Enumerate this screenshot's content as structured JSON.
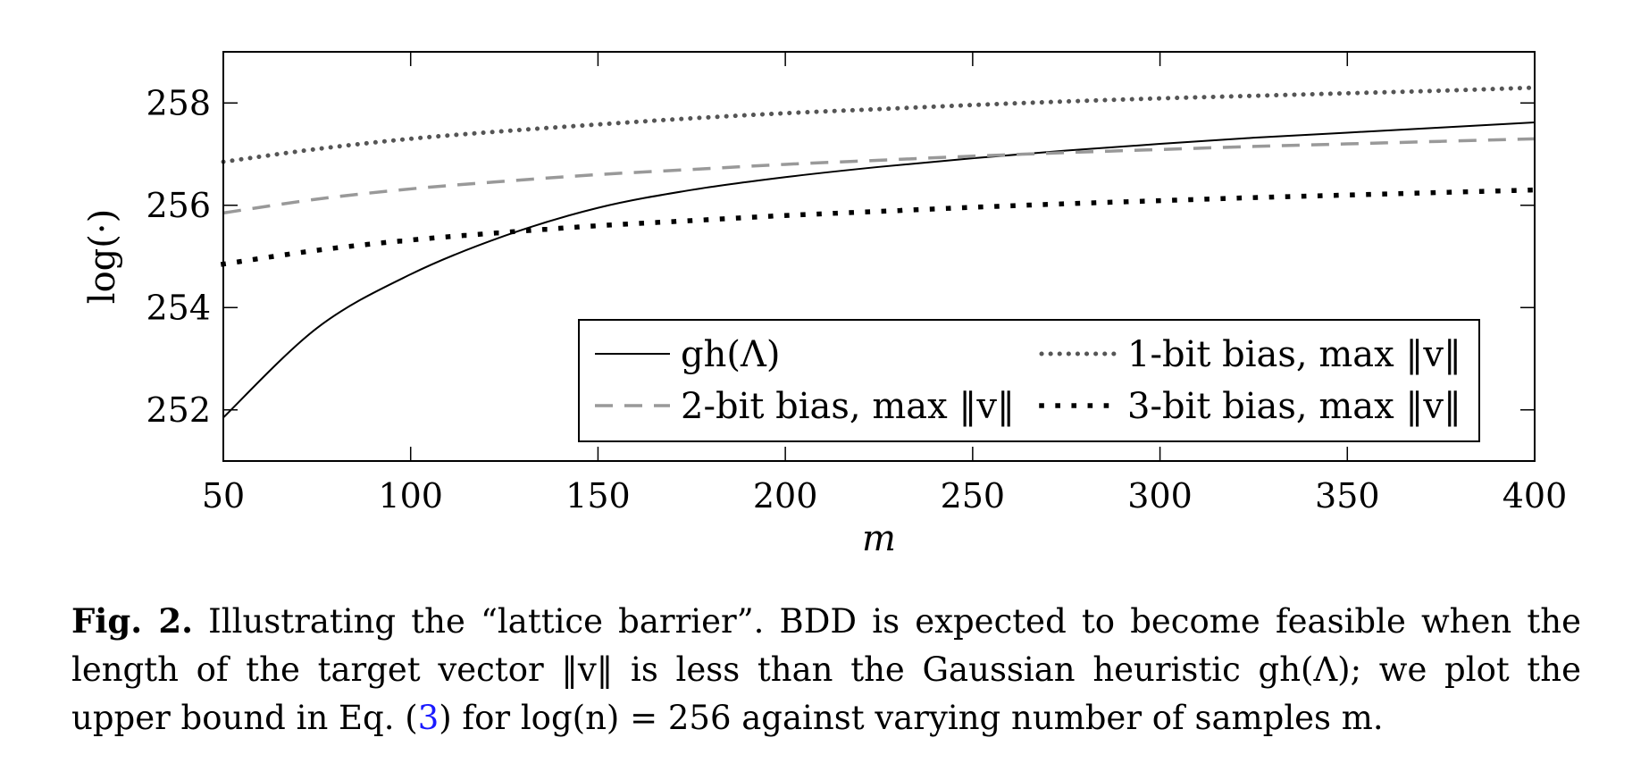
{
  "chart_data": {
    "type": "line",
    "xlabel": "m",
    "ylabel": "log(·)",
    "xlim": [
      50,
      400
    ],
    "ylim": [
      251,
      259
    ],
    "xticks": [
      50,
      100,
      150,
      200,
      250,
      300,
      350,
      400
    ],
    "xtick_labels": [
      "50",
      "100",
      "150",
      "200",
      "250",
      "300",
      "350",
      "400"
    ],
    "yticks": [
      252,
      254,
      256,
      258
    ],
    "ytick_labels": [
      "252",
      "254",
      "256",
      "258"
    ],
    "grid": false,
    "legend_placement": "bottom-right",
    "x": [
      50,
      75,
      100,
      125,
      150,
      175,
      200,
      225,
      250,
      275,
      300,
      325,
      350,
      375,
      400
    ],
    "series": [
      {
        "name": "gh(Λ)",
        "style": "solid",
        "color": "#000000",
        "values": [
          251.85,
          253.6,
          254.65,
          255.4,
          255.95,
          256.3,
          256.55,
          256.75,
          256.92,
          257.07,
          257.2,
          257.32,
          257.42,
          257.52,
          257.62
        ]
      },
      {
        "name": "1-bit bias, max ‖v‖",
        "style": "dotted",
        "color": "#555555",
        "values": [
          256.85,
          257.1,
          257.3,
          257.45,
          257.58,
          257.7,
          257.8,
          257.88,
          257.96,
          258.03,
          258.09,
          258.14,
          258.19,
          258.24,
          258.3
        ]
      },
      {
        "name": "2-bit bias, max ‖v‖",
        "style": "dashed",
        "color": "#999999",
        "values": [
          255.85,
          256.12,
          256.32,
          256.47,
          256.6,
          256.7,
          256.8,
          256.88,
          256.96,
          257.03,
          257.09,
          257.15,
          257.2,
          257.25,
          257.3
        ]
      },
      {
        "name": "3-bit bias, max ‖v‖",
        "style": "dotted-sparse",
        "color": "#000000",
        "values": [
          254.85,
          255.12,
          255.32,
          255.47,
          255.6,
          255.7,
          255.8,
          255.88,
          255.96,
          256.03,
          256.09,
          256.15,
          256.2,
          256.25,
          256.3
        ]
      }
    ],
    "legend_entries": [
      "gh(Λ)",
      "1-bit bias, max ‖v‖",
      "2-bit bias, max ‖v‖",
      "3-bit bias, max ‖v‖"
    ]
  },
  "caption": {
    "label": "Fig. 2.",
    "text_part1": " Illustrating the “lattice barrier”. BDD is expected to become feasible when the length of the target vector ‖v‖ is less than the Gaussian heuristic gh(Λ); we plot the upper bound in Eq. (",
    "eq_ref": "3",
    "text_part2": ") for log(n) = 256 against varying number of samples m."
  }
}
